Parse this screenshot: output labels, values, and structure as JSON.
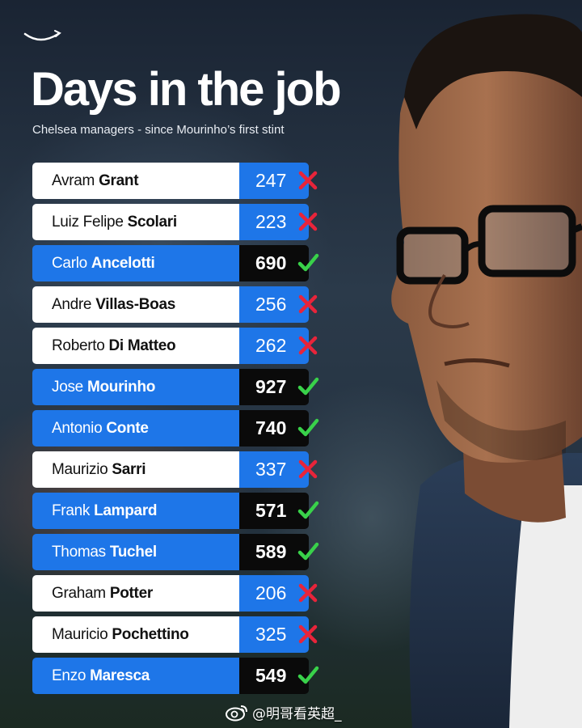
{
  "title": "Days in the job",
  "subtitle": "Chelsea managers - since Mourinho’s first stint",
  "watermark": "@明哥看英超_",
  "colors": {
    "accent_blue": "#1e76e8",
    "dark": "#0a0a0a",
    "success_green": "#39d14a",
    "fail_red": "#e8243a"
  },
  "managers": [
    {
      "first": "Avram",
      "last": "Grant",
      "days": "247",
      "result": "cross"
    },
    {
      "first": "Luiz Felipe",
      "last": "Scolari",
      "days": "223",
      "result": "cross"
    },
    {
      "first": "Carlo",
      "last": "Ancelotti",
      "days": "690",
      "result": "check"
    },
    {
      "first": "Andre",
      "last": "Villas-Boas",
      "days": "256",
      "result": "cross"
    },
    {
      "first": "Roberto",
      "last": "Di Matteo",
      "days": "262",
      "result": "cross"
    },
    {
      "first": "Jose",
      "last": "Mourinho",
      "days": "927",
      "result": "check"
    },
    {
      "first": "Antonio",
      "last": "Conte",
      "days": "740",
      "result": "check"
    },
    {
      "first": "Maurizio",
      "last": "Sarri",
      "days": "337",
      "result": "cross"
    },
    {
      "first": "Frank",
      "last": "Lampard",
      "days": "571",
      "result": "check"
    },
    {
      "first": "Thomas",
      "last": "Tuchel",
      "days": "589",
      "result": "check"
    },
    {
      "first": "Graham",
      "last": "Potter",
      "days": "206",
      "result": "cross"
    },
    {
      "first": "Mauricio",
      "last": "Pochettino",
      "days": "325",
      "result": "cross"
    },
    {
      "first": "Enzo",
      "last": "Maresca",
      "days": "549",
      "result": "check"
    }
  ]
}
